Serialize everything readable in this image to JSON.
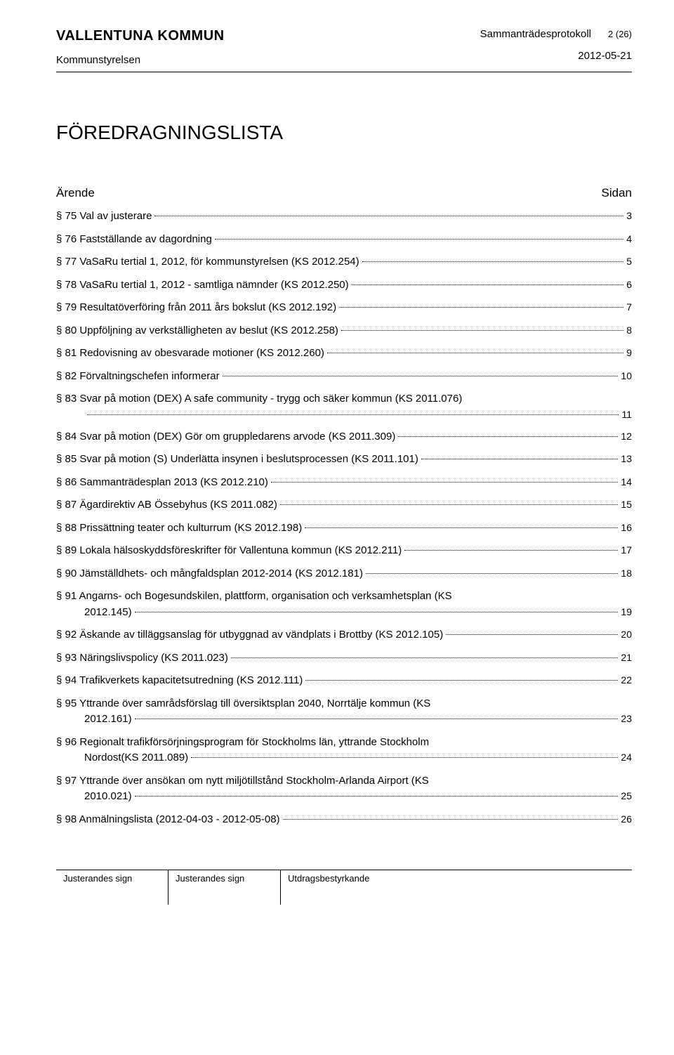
{
  "header": {
    "org_name": "VALLENTUNA KOMMUN",
    "board_name": "Kommunstyrelsen",
    "doc_type": "Sammanträdesprotokoll",
    "page_num": "2 (26)",
    "meeting_date": "2012-05-21"
  },
  "main_title": "FÖREDRAGNINGSLISTA",
  "toc": {
    "header_left": "Ärende",
    "header_right": "Sidan",
    "items": [
      {
        "text": "§ 75 Val av justerare",
        "page": "3"
      },
      {
        "text": "§ 76 Fastställande av dagordning",
        "page": "4"
      },
      {
        "text": "§ 77 VaSaRu tertial 1, 2012, för kommunstyrelsen (KS 2012.254)",
        "page": "5"
      },
      {
        "text": "§ 78 VaSaRu tertial 1, 2012 - samtliga nämnder (KS 2012.250)",
        "page": "6"
      },
      {
        "text": "§ 79 Resultatöverföring från 2011 års bokslut (KS 2012.192)",
        "page": "7"
      },
      {
        "text": "§ 80 Uppföljning av verkställigheten av beslut (KS 2012.258)",
        "page": "8"
      },
      {
        "text": "§ 81 Redovisning av obesvarade motioner (KS 2012.260)",
        "page": "9"
      },
      {
        "text": "§ 82 Förvaltningschefen informerar",
        "page": "10"
      },
      {
        "text": "§ 83 Svar på motion (DEX) A safe community - trygg och säker kommun (KS 2011.076)",
        "text2": "",
        "page": "11",
        "wrap": true
      },
      {
        "text": "§ 84 Svar på motion (DEX) Gör om gruppledarens arvode (KS 2011.309)",
        "page": "12"
      },
      {
        "text": "§ 85 Svar på motion (S) Underlätta insynen i beslutsprocessen (KS 2011.101)",
        "page": "13"
      },
      {
        "text": "§ 86 Sammanträdesplan 2013 (KS 2012.210)",
        "page": "14"
      },
      {
        "text": "§ 87 Ägardirektiv AB Össebyhus (KS 2011.082)",
        "page": "15"
      },
      {
        "text": "§ 88 Prissättning teater och kulturrum (KS 2012.198)",
        "page": "16"
      },
      {
        "text": "§ 89 Lokala hälsoskyddsföreskrifter för Vallentuna kommun (KS 2012.211)",
        "page": "17"
      },
      {
        "text": "§ 90 Jämställdhets- och mångfaldsplan 2012-2014 (KS 2012.181)",
        "page": "18"
      },
      {
        "text": "§ 91 Angarns- och Bogesundskilen, plattform, organisation och verksamhetsplan (KS",
        "text2": "2012.145)",
        "page": "19",
        "wrap": true
      },
      {
        "text": "§ 92 Äskande av tilläggsanslag för utbyggnad av vändplats i Brottby (KS 2012.105)",
        "page": "20"
      },
      {
        "text": "§ 93 Näringslivspolicy (KS 2011.023)",
        "page": "21"
      },
      {
        "text": "§ 94 Trafikverkets kapacitetsutredning (KS 2012.111)",
        "page": "22"
      },
      {
        "text": "§ 95 Yttrande över samrådsförslag till översiktsplan 2040, Norrtälje kommun (KS",
        "text2": "2012.161)",
        "page": "23",
        "wrap": true
      },
      {
        "text": "§ 96 Regionalt trafikförsörjningsprogram för Stockholms län, yttrande Stockholm",
        "text2": "Nordost(KS 2011.089)",
        "page": "24",
        "wrap": true
      },
      {
        "text": "§ 97 Yttrande över ansökan om nytt miljötillstånd Stockholm-Arlanda Airport (KS",
        "text2": "2010.021)",
        "page": "25",
        "wrap": true
      },
      {
        "text": "§ 98 Anmälningslista (2012-04-03 - 2012-05-08)",
        "page": "26"
      }
    ]
  },
  "footer": {
    "cell1": "Justerandes sign",
    "cell2": "Justerandes sign",
    "cell3": "Utdragsbestyrkande"
  }
}
